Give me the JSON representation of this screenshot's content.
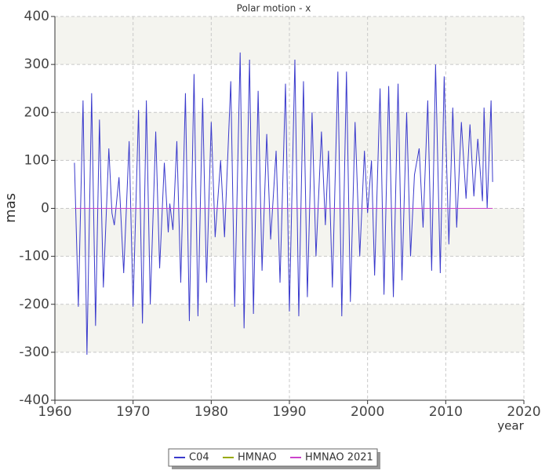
{
  "chart_data": {
    "type": "line",
    "title": "Polar motion - x",
    "xlabel": "year",
    "ylabel": "mas",
    "xlim": [
      1960,
      2020
    ],
    "xticks": [
      1960,
      1970,
      1980,
      1990,
      2000,
      2010,
      2020
    ],
    "ylim": [
      -400,
      400
    ],
    "yticks": [
      -400,
      -300,
      -200,
      -100,
      0,
      100,
      200,
      300,
      400
    ],
    "grid": true,
    "legend": "bottom",
    "series": [
      {
        "name": "C04",
        "color": "#3a3acc",
        "x": [
          1962.5,
          1963.0,
          1963.6,
          1964.1,
          1964.7,
          1965.2,
          1965.7,
          1966.2,
          1966.9,
          1967.3,
          1967.6,
          1968.2,
          1968.8,
          1969.5,
          1970.0,
          1970.7,
          1971.2,
          1971.7,
          1972.2,
          1972.9,
          1973.4,
          1974.0,
          1974.5,
          1974.7,
          1975.1,
          1975.6,
          1976.1,
          1976.7,
          1977.2,
          1977.8,
          1978.3,
          1978.9,
          1979.4,
          1980.0,
          1980.5,
          1981.2,
          1981.7,
          1982.5,
          1983.0,
          1983.7,
          1984.2,
          1984.9,
          1985.4,
          1986.0,
          1986.5,
          1987.1,
          1987.6,
          1988.3,
          1988.8,
          1989.5,
          1990.0,
          1990.7,
          1991.2,
          1991.8,
          1992.3,
          1992.9,
          1993.4,
          1994.1,
          1994.6,
          1995.0,
          1995.5,
          1996.2,
          1996.7,
          1997.3,
          1997.8,
          1998.4,
          1999.0,
          1999.6,
          2000.0,
          2000.5,
          2000.9,
          2001.6,
          2002.1,
          2002.7,
          2003.3,
          2003.9,
          2004.4,
          2005.0,
          2005.5,
          2006.0,
          2006.6,
          2007.1,
          2007.7,
          2008.2,
          2008.7,
          2009.3,
          2009.8,
          2010.4,
          2010.9,
          2011.4,
          2012.0,
          2012.6,
          2013.1,
          2013.6,
          2014.1,
          2014.7,
          2014.9,
          2015.3,
          2015.8,
          2016.0
        ],
        "values": [
          95,
          -205,
          225,
          -305,
          240,
          -245,
          185,
          -165,
          125,
          -10,
          -35,
          65,
          -135,
          140,
          -205,
          205,
          -240,
          225,
          -200,
          160,
          -125,
          95,
          -50,
          10,
          -45,
          140,
          -155,
          240,
          -235,
          280,
          -225,
          230,
          -155,
          180,
          -60,
          100,
          -60,
          265,
          -205,
          325,
          -250,
          310,
          -220,
          245,
          -130,
          155,
          -65,
          120,
          -155,
          260,
          -215,
          310,
          -225,
          265,
          -185,
          200,
          -100,
          160,
          -35,
          120,
          -165,
          285,
          -225,
          285,
          -195,
          180,
          -100,
          120,
          -10,
          100,
          -140,
          250,
          -180,
          255,
          -185,
          260,
          -150,
          200,
          -100,
          70,
          125,
          -40,
          225,
          -130,
          300,
          -135,
          275,
          -75,
          210,
          -40,
          180,
          20,
          175,
          25,
          145,
          15,
          210,
          0,
          225,
          55
        ]
      },
      {
        "name": "HMNAO",
        "color": "#99aa00",
        "x": [
          1962.5,
          2016.0
        ],
        "values": [
          0,
          0
        ]
      },
      {
        "name": "HMNAO 2021",
        "color": "#cc44cc",
        "x": [
          1962.5,
          2016.0
        ],
        "values": [
          0,
          0
        ]
      }
    ]
  }
}
